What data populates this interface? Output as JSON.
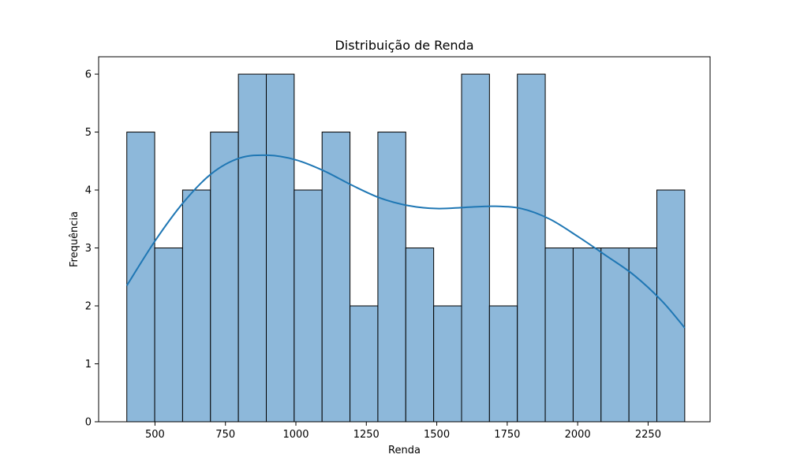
{
  "chart_data": {
    "type": "bar",
    "title": "Distribuição de Renda",
    "xlabel": "Renda",
    "ylabel": "Frequência",
    "xlim": [
      300,
      2470
    ],
    "ylim": [
      0,
      6.3
    ],
    "xticks": [
      500,
      750,
      1000,
      1250,
      1500,
      1750,
      2000,
      2250
    ],
    "yticks": [
      0,
      1,
      2,
      3,
      4,
      5,
      6
    ],
    "bins": {
      "edges": [
        400,
        499,
        598,
        697,
        796,
        895,
        994,
        1093,
        1192,
        1291,
        1390,
        1489,
        1588,
        1687,
        1786,
        1885,
        1984,
        2083,
        2182,
        2281,
        2380
      ],
      "counts": [
        5,
        3,
        4,
        5,
        6,
        6,
        4,
        5,
        2,
        5,
        3,
        2,
        6,
        2,
        6,
        3,
        3,
        3,
        3,
        4
      ]
    },
    "kde": {
      "x": [
        400,
        500,
        600,
        700,
        800,
        900,
        1000,
        1100,
        1200,
        1300,
        1400,
        1500,
        1600,
        1700,
        1800,
        1900,
        2000,
        2100,
        2200,
        2300,
        2380
      ],
      "y": [
        2.35,
        3.12,
        3.78,
        4.28,
        4.55,
        4.6,
        4.52,
        4.33,
        4.08,
        3.86,
        3.73,
        3.68,
        3.7,
        3.72,
        3.68,
        3.5,
        3.2,
        2.87,
        2.53,
        2.08,
        1.62
      ]
    },
    "grid": false,
    "colors": {
      "bar_fill": "#8db8da",
      "bar_edge": "#000000",
      "kde_line": "#1f77b4"
    }
  }
}
